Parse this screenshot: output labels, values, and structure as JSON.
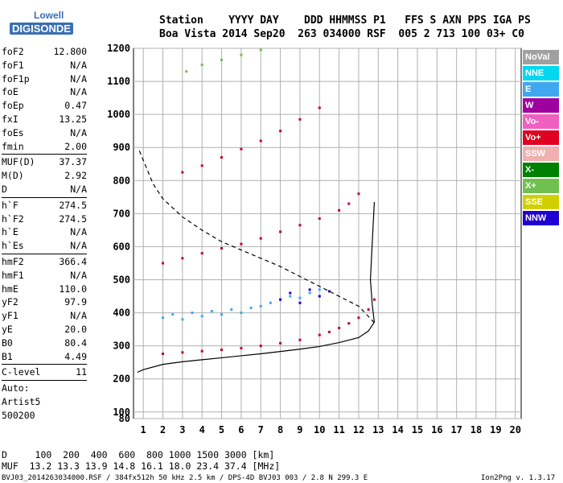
{
  "logo": {
    "line1": "Lowell",
    "line2": "DIGISONDE"
  },
  "header": {
    "line1": "Station    YYYY DAY    DDD HHMMSS P1   FFS S AXN PPS IGA PS",
    "line2": "Boa Vista 2014 Sep20  263 034000 RSF  005 2 713 100 03+ C0"
  },
  "params": [
    {
      "k": "foF2",
      "v": "12.800"
    },
    {
      "k": "foF1",
      "v": "N/A"
    },
    {
      "k": "foF1p",
      "v": "N/A"
    },
    {
      "k": "foE",
      "v": "N/A"
    },
    {
      "k": "foEp",
      "v": "0.47"
    },
    {
      "k": "fxI",
      "v": "13.25"
    },
    {
      "k": "foEs",
      "v": "N/A"
    },
    {
      "k": "fmin",
      "v": "2.00"
    },
    {
      "sep": true
    },
    {
      "k": "MUF(D)",
      "v": "37.37"
    },
    {
      "k": "M(D)",
      "v": "2.92"
    },
    {
      "k": "D",
      "v": "N/A"
    },
    {
      "sep": true
    },
    {
      "k": "h`F",
      "v": "274.5"
    },
    {
      "k": "h`F2",
      "v": "274.5"
    },
    {
      "k": "h`E",
      "v": "N/A"
    },
    {
      "k": "h`Es",
      "v": "N/A"
    },
    {
      "sep": true
    },
    {
      "k": "hmF2",
      "v": "366.4"
    },
    {
      "k": "hmF1",
      "v": "N/A"
    },
    {
      "k": "hmE",
      "v": "110.0"
    },
    {
      "k": "yF2",
      "v": "97.9"
    },
    {
      "k": "yF1",
      "v": "N/A"
    },
    {
      "k": "yE",
      "v": "20.0"
    },
    {
      "k": "B0",
      "v": "80.4"
    },
    {
      "k": "B1",
      "v": "4.49"
    },
    {
      "sep": true
    },
    {
      "k": "C-level",
      "v": "11"
    },
    {
      "sep": true
    },
    {
      "t": "Auto:"
    },
    {
      "t": "Artist5"
    },
    {
      "t": "500200"
    }
  ],
  "legend": [
    {
      "label": "NoVal",
      "color": "#a0a0a0"
    },
    {
      "label": "NNE",
      "color": "#00d8f0"
    },
    {
      "label": "E",
      "color": "#40a8f0"
    },
    {
      "label": "W",
      "color": "#a000a0"
    },
    {
      "label": "Vo-",
      "color": "#f060c0"
    },
    {
      "label": "Vo+",
      "color": "#e00020"
    },
    {
      "label": "SSW",
      "color": "#f0b0b0"
    },
    {
      "label": "X-",
      "color": "#008000"
    },
    {
      "label": "X+",
      "color": "#70c050"
    },
    {
      "label": "SSE",
      "color": "#d0d000"
    },
    {
      "label": "NNW",
      "color": "#2000d0"
    }
  ],
  "footer": {
    "line1": "D     100  200  400  600  800 1000 1500 3000 [km]",
    "line2": "MUF  13.2 13.3 13.9 14.8 16.1 18.0 23.4 37.4 [MHz]",
    "line3": "BVJ03_2014263034000.RSF / 384fx512h 50 kHz 2.5 km / DPS-4D BVJ03 003 / 2.8 N 299.3 E",
    "version": "Ion2Png v. 1.3.17"
  },
  "chart_data": {
    "type": "scatter",
    "xlim": [
      0.5,
      20.3
    ],
    "ylim": [
      80,
      1200
    ],
    "xticks": [
      1,
      2,
      3,
      4,
      5,
      6,
      7,
      8,
      9,
      10,
      11,
      12,
      13,
      14,
      15,
      16,
      17,
      18,
      19,
      20
    ],
    "yticks": [
      80,
      100,
      200,
      300,
      400,
      500,
      600,
      700,
      800,
      900,
      1000,
      1100,
      1200
    ],
    "grid": true,
    "series": [
      {
        "name": "Vo+",
        "color": "#c00030",
        "x": [
          2.0,
          3.0,
          4.0,
          5.0,
          6.0,
          7.0,
          8.0,
          9.0,
          10.0,
          10.5,
          11.0,
          11.5,
          12.0,
          12.5,
          12.8
        ],
        "y": [
          276,
          280,
          284,
          288,
          293,
          300,
          308,
          318,
          333,
          342,
          354,
          368,
          385,
          410,
          440
        ]
      },
      {
        "name": "Vo+",
        "color": "#c00030",
        "x": [
          2.0,
          3.0,
          4.0,
          5.0,
          6.0,
          7.0,
          8.0,
          9.0,
          10.0,
          11.0,
          11.5,
          12.0
        ],
        "y": [
          550,
          565,
          580,
          595,
          608,
          625,
          645,
          665,
          685,
          710,
          730,
          760
        ]
      },
      {
        "name": "Vo+",
        "color": "#c00030",
        "x": [
          3.0,
          4.0,
          5.0,
          6.0,
          7.0,
          8.0,
          9.0,
          10.0
        ],
        "y": [
          825,
          845,
          870,
          895,
          920,
          950,
          985,
          1020
        ]
      },
      {
        "name": "X+",
        "color": "#70c050",
        "x": [
          3.2,
          4.0,
          5.0,
          6.0,
          7.0
        ],
        "y": [
          1130,
          1150,
          1165,
          1180,
          1195
        ]
      },
      {
        "name": "E",
        "color": "#40a8f0",
        "x": [
          2.0,
          2.5,
          3.0,
          3.5,
          4.0,
          4.5,
          5.0,
          5.5,
          6.0,
          6.5,
          7.0,
          7.5,
          8.0,
          8.5,
          9.0,
          9.5,
          10.0
        ],
        "y": [
          385,
          395,
          380,
          400,
          390,
          405,
          395,
          410,
          400,
          415,
          420,
          430,
          440,
          450,
          445,
          460,
          470
        ]
      },
      {
        "name": "NNW",
        "color": "#2000d0",
        "x": [
          8.0,
          8.5,
          9.0,
          9.5,
          10.0,
          10.5
        ],
        "y": [
          440,
          460,
          430,
          470,
          450,
          465
        ]
      }
    ],
    "curves": [
      {
        "name": "profile",
        "color": "#000000",
        "dash": false,
        "x": [
          0.7,
          1.0,
          2.0,
          3.0,
          4.0,
          5.0,
          6.0,
          7.0,
          8.0,
          9.0,
          10.0,
          11.0,
          12.0,
          12.5,
          12.8,
          12.7,
          12.6,
          12.7,
          12.8
        ],
        "y": [
          220,
          228,
          244,
          252,
          258,
          264,
          270,
          276,
          283,
          290,
          298,
          310,
          325,
          345,
          372,
          420,
          500,
          620,
          735
        ]
      },
      {
        "name": "muf",
        "color": "#000000",
        "dash": true,
        "x": [
          0.8,
          1.5,
          2.0,
          3.0,
          4.0,
          5.0,
          6.0,
          7.0,
          8.0,
          9.0,
          10.0,
          11.0,
          12.0,
          12.8
        ],
        "y": [
          890,
          790,
          745,
          690,
          650,
          615,
          590,
          565,
          540,
          510,
          480,
          450,
          420,
          370
        ]
      }
    ]
  }
}
